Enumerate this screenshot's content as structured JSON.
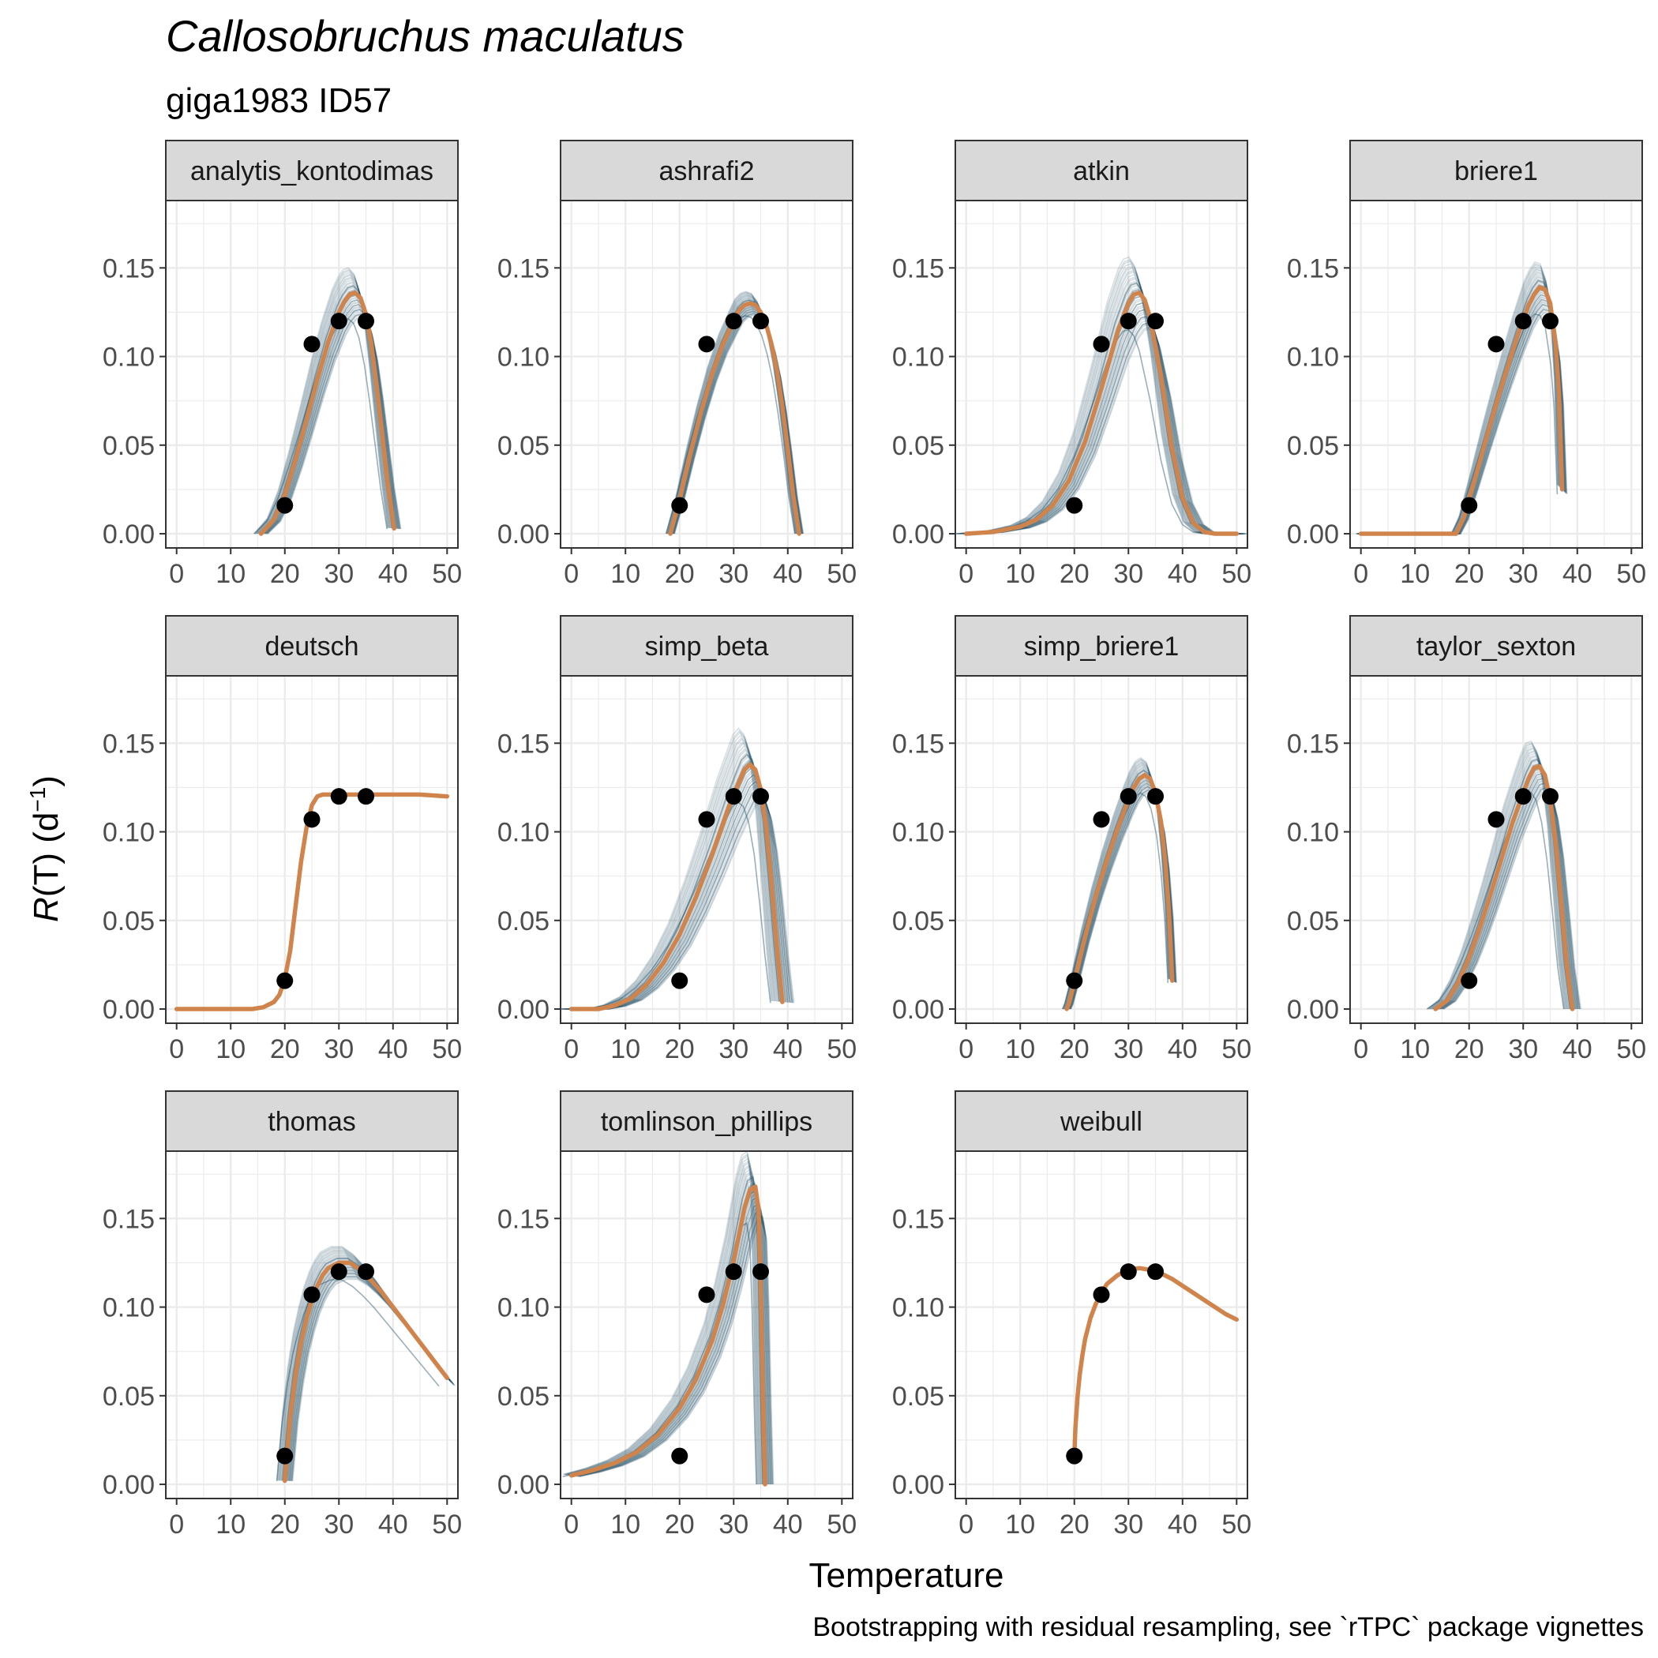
{
  "title": "Callosobruchus maculatus",
  "subtitle": "giga1983 ID57",
  "xlabel": "Temperature",
  "ylabel_main": "R",
  "ylabel_rest": "(T) (d",
  "ylabel_sup": "−1",
  "ylabel_close": ")",
  "caption": "Bootstrapping with residual resampling, see `rTPC` package vignettes",
  "colors": {
    "fit": "#D0844C",
    "bootstrap": "#1F4E64",
    "points": "#000000",
    "strip_fill": "#D9D9D9",
    "grid": "#EBEBEB",
    "border": "#333333"
  },
  "chart_data": {
    "type": "line",
    "layout": "facet_wrap",
    "ncol": 4,
    "xlim": [
      -2,
      52
    ],
    "ylim": [
      -0.008,
      0.188
    ],
    "x_ticks": [
      0,
      10,
      20,
      30,
      40,
      50
    ],
    "x_tick_labels": [
      "0",
      "10",
      "20",
      "30",
      "40",
      "50"
    ],
    "y_ticks": [
      0,
      0.05,
      0.1,
      0.15
    ],
    "y_tick_labels": [
      "0.00",
      "0.05",
      "0.10",
      "0.15"
    ],
    "grid": true,
    "observed": {
      "x": [
        20,
        25,
        30,
        35
      ],
      "y": [
        0.016,
        0.107,
        0.12,
        0.12
      ]
    },
    "facets": [
      {
        "name": "analytis_kontodimas",
        "fit": {
          "x": [
            15.6,
            18,
            20,
            22,
            24,
            26,
            28,
            30,
            31,
            32,
            33,
            34,
            35,
            36,
            37,
            38,
            39,
            40.2
          ],
          "y": [
            0.0,
            0.008,
            0.022,
            0.042,
            0.064,
            0.087,
            0.108,
            0.125,
            0.131,
            0.135,
            0.136,
            0.133,
            0.124,
            0.107,
            0.083,
            0.056,
            0.029,
            0.003
          ]
        },
        "boot_spread": 0.014,
        "boot_shift": 1.3
      },
      {
        "name": "ashrafi2",
        "fit": {
          "x": [
            18.3,
            19,
            20,
            22,
            24,
            26,
            28,
            30,
            31,
            32,
            33,
            34,
            35,
            36,
            37,
            38,
            39,
            40,
            41,
            42.1
          ],
          "y": [
            0.0,
            0.008,
            0.019,
            0.045,
            0.069,
            0.09,
            0.107,
            0.12,
            0.126,
            0.129,
            0.13,
            0.129,
            0.125,
            0.118,
            0.107,
            0.092,
            0.072,
            0.048,
            0.022,
            0.0
          ]
        },
        "boot_spread": 0.007,
        "boot_shift": 0.8
      },
      {
        "name": "atkin",
        "fit": {
          "x": [
            0,
            5,
            10,
            13,
            16,
            19,
            22,
            25,
            28,
            30,
            31,
            32,
            33,
            34,
            36,
            38,
            40,
            42,
            44,
            46,
            48,
            50
          ],
          "y": [
            0.0,
            0.001,
            0.004,
            0.008,
            0.016,
            0.03,
            0.052,
            0.082,
            0.114,
            0.13,
            0.135,
            0.136,
            0.132,
            0.122,
            0.089,
            0.049,
            0.02,
            0.006,
            0.001,
            0.0,
            0.0,
            0.0
          ]
        },
        "boot_spread": 0.02,
        "boot_shift": 2.0
      },
      {
        "name": "briere1",
        "fit": {
          "x": [
            0,
            5,
            10,
            15,
            17.6,
            19,
            21,
            23,
            25,
            27,
            29,
            31,
            32,
            33,
            34,
            35,
            36,
            36.6,
            37.2
          ],
          "y": [
            0.0,
            0.0,
            0.0,
            0.0,
            0.0,
            0.009,
            0.03,
            0.052,
            0.073,
            0.093,
            0.112,
            0.129,
            0.135,
            0.139,
            0.138,
            0.13,
            0.107,
            0.08,
            0.025
          ]
        },
        "boot_spread": 0.014,
        "boot_shift": 0.9
      },
      {
        "name": "deutsch",
        "fit": {
          "x": [
            0,
            5,
            10,
            14,
            16,
            18,
            19,
            20,
            21,
            22,
            23,
            24,
            25,
            26,
            27,
            30,
            35,
            40,
            45,
            50
          ],
          "y": [
            0.0,
            0.0,
            0.0,
            0.0,
            0.001,
            0.004,
            0.008,
            0.017,
            0.033,
            0.058,
            0.083,
            0.102,
            0.115,
            0.12,
            0.121,
            0.121,
            0.121,
            0.121,
            0.121,
            0.12
          ]
        },
        "boot_spread": 0,
        "boot_shift": 0
      },
      {
        "name": "simp_beta",
        "fit": {
          "x": [
            0,
            5,
            8,
            11,
            14,
            17,
            20,
            23,
            26,
            29,
            31,
            32,
            33,
            34,
            35,
            36,
            37,
            38,
            39
          ],
          "y": [
            0.0,
            0.0,
            0.002,
            0.006,
            0.014,
            0.026,
            0.042,
            0.063,
            0.087,
            0.113,
            0.128,
            0.135,
            0.138,
            0.135,
            0.124,
            0.103,
            0.071,
            0.035,
            0.004
          ]
        },
        "boot_spread": 0.02,
        "boot_shift": 2.2
      },
      {
        "name": "simp_briere1",
        "fit": {
          "x": [
            18.6,
            19,
            20,
            22,
            24,
            26,
            28,
            30,
            31,
            32,
            33,
            34,
            35,
            36,
            36.8,
            37.5,
            38.1
          ],
          "y": [
            0.0,
            0.003,
            0.015,
            0.041,
            0.064,
            0.084,
            0.102,
            0.118,
            0.125,
            0.13,
            0.132,
            0.13,
            0.122,
            0.106,
            0.084,
            0.055,
            0.016
          ]
        },
        "boot_spread": 0.01,
        "boot_shift": 0.8
      },
      {
        "name": "taylor_sexton",
        "fit": {
          "x": [
            13.8,
            16,
            18,
            20,
            22,
            24,
            26,
            28,
            30,
            31,
            32,
            33,
            34,
            35,
            36,
            37,
            38,
            39.1
          ],
          "y": [
            0.0,
            0.005,
            0.015,
            0.029,
            0.046,
            0.065,
            0.085,
            0.105,
            0.122,
            0.13,
            0.136,
            0.137,
            0.132,
            0.118,
            0.094,
            0.061,
            0.026,
            0.0
          ]
        },
        "boot_spread": 0.014,
        "boot_shift": 1.6
      },
      {
        "name": "thomas",
        "fit": {
          "x": [
            20,
            21,
            22,
            23,
            24,
            25,
            26,
            27,
            28,
            30,
            32,
            34,
            36,
            38,
            40,
            42,
            44,
            46,
            48,
            50
          ],
          "y": [
            0.002,
            0.038,
            0.062,
            0.08,
            0.093,
            0.104,
            0.112,
            0.118,
            0.122,
            0.125,
            0.125,
            0.121,
            0.115,
            0.108,
            0.1,
            0.092,
            0.084,
            0.076,
            0.068,
            0.06
          ]
        },
        "boot_spread": 0.01,
        "boot_shift": 1.5
      },
      {
        "name": "tomlinson_phillips",
        "fit": {
          "x": [
            0,
            4,
            8,
            12,
            16,
            20,
            23,
            26,
            28,
            30,
            31,
            32,
            33,
            34,
            34.6,
            35.0,
            35.4,
            35.8
          ],
          "y": [
            0.005,
            0.008,
            0.012,
            0.018,
            0.028,
            0.043,
            0.059,
            0.081,
            0.101,
            0.126,
            0.141,
            0.156,
            0.166,
            0.168,
            0.155,
            0.112,
            0.05,
            0.0
          ]
        },
        "boot_spread": 0.016,
        "boot_shift": 1.6
      },
      {
        "name": "weibull",
        "fit": {
          "x": [
            20,
            20.2,
            20.6,
            21,
            21.5,
            22,
            23,
            24,
            25,
            26,
            28,
            30,
            32,
            34,
            36,
            38,
            40,
            42,
            44,
            46,
            48,
            50
          ],
          "y": [
            0.016,
            0.032,
            0.05,
            0.062,
            0.073,
            0.082,
            0.094,
            0.102,
            0.108,
            0.113,
            0.118,
            0.121,
            0.122,
            0.121,
            0.119,
            0.116,
            0.112,
            0.108,
            0.104,
            0.1,
            0.096,
            0.093
          ]
        },
        "boot_spread": 0,
        "boot_shift": 0
      }
    ]
  }
}
